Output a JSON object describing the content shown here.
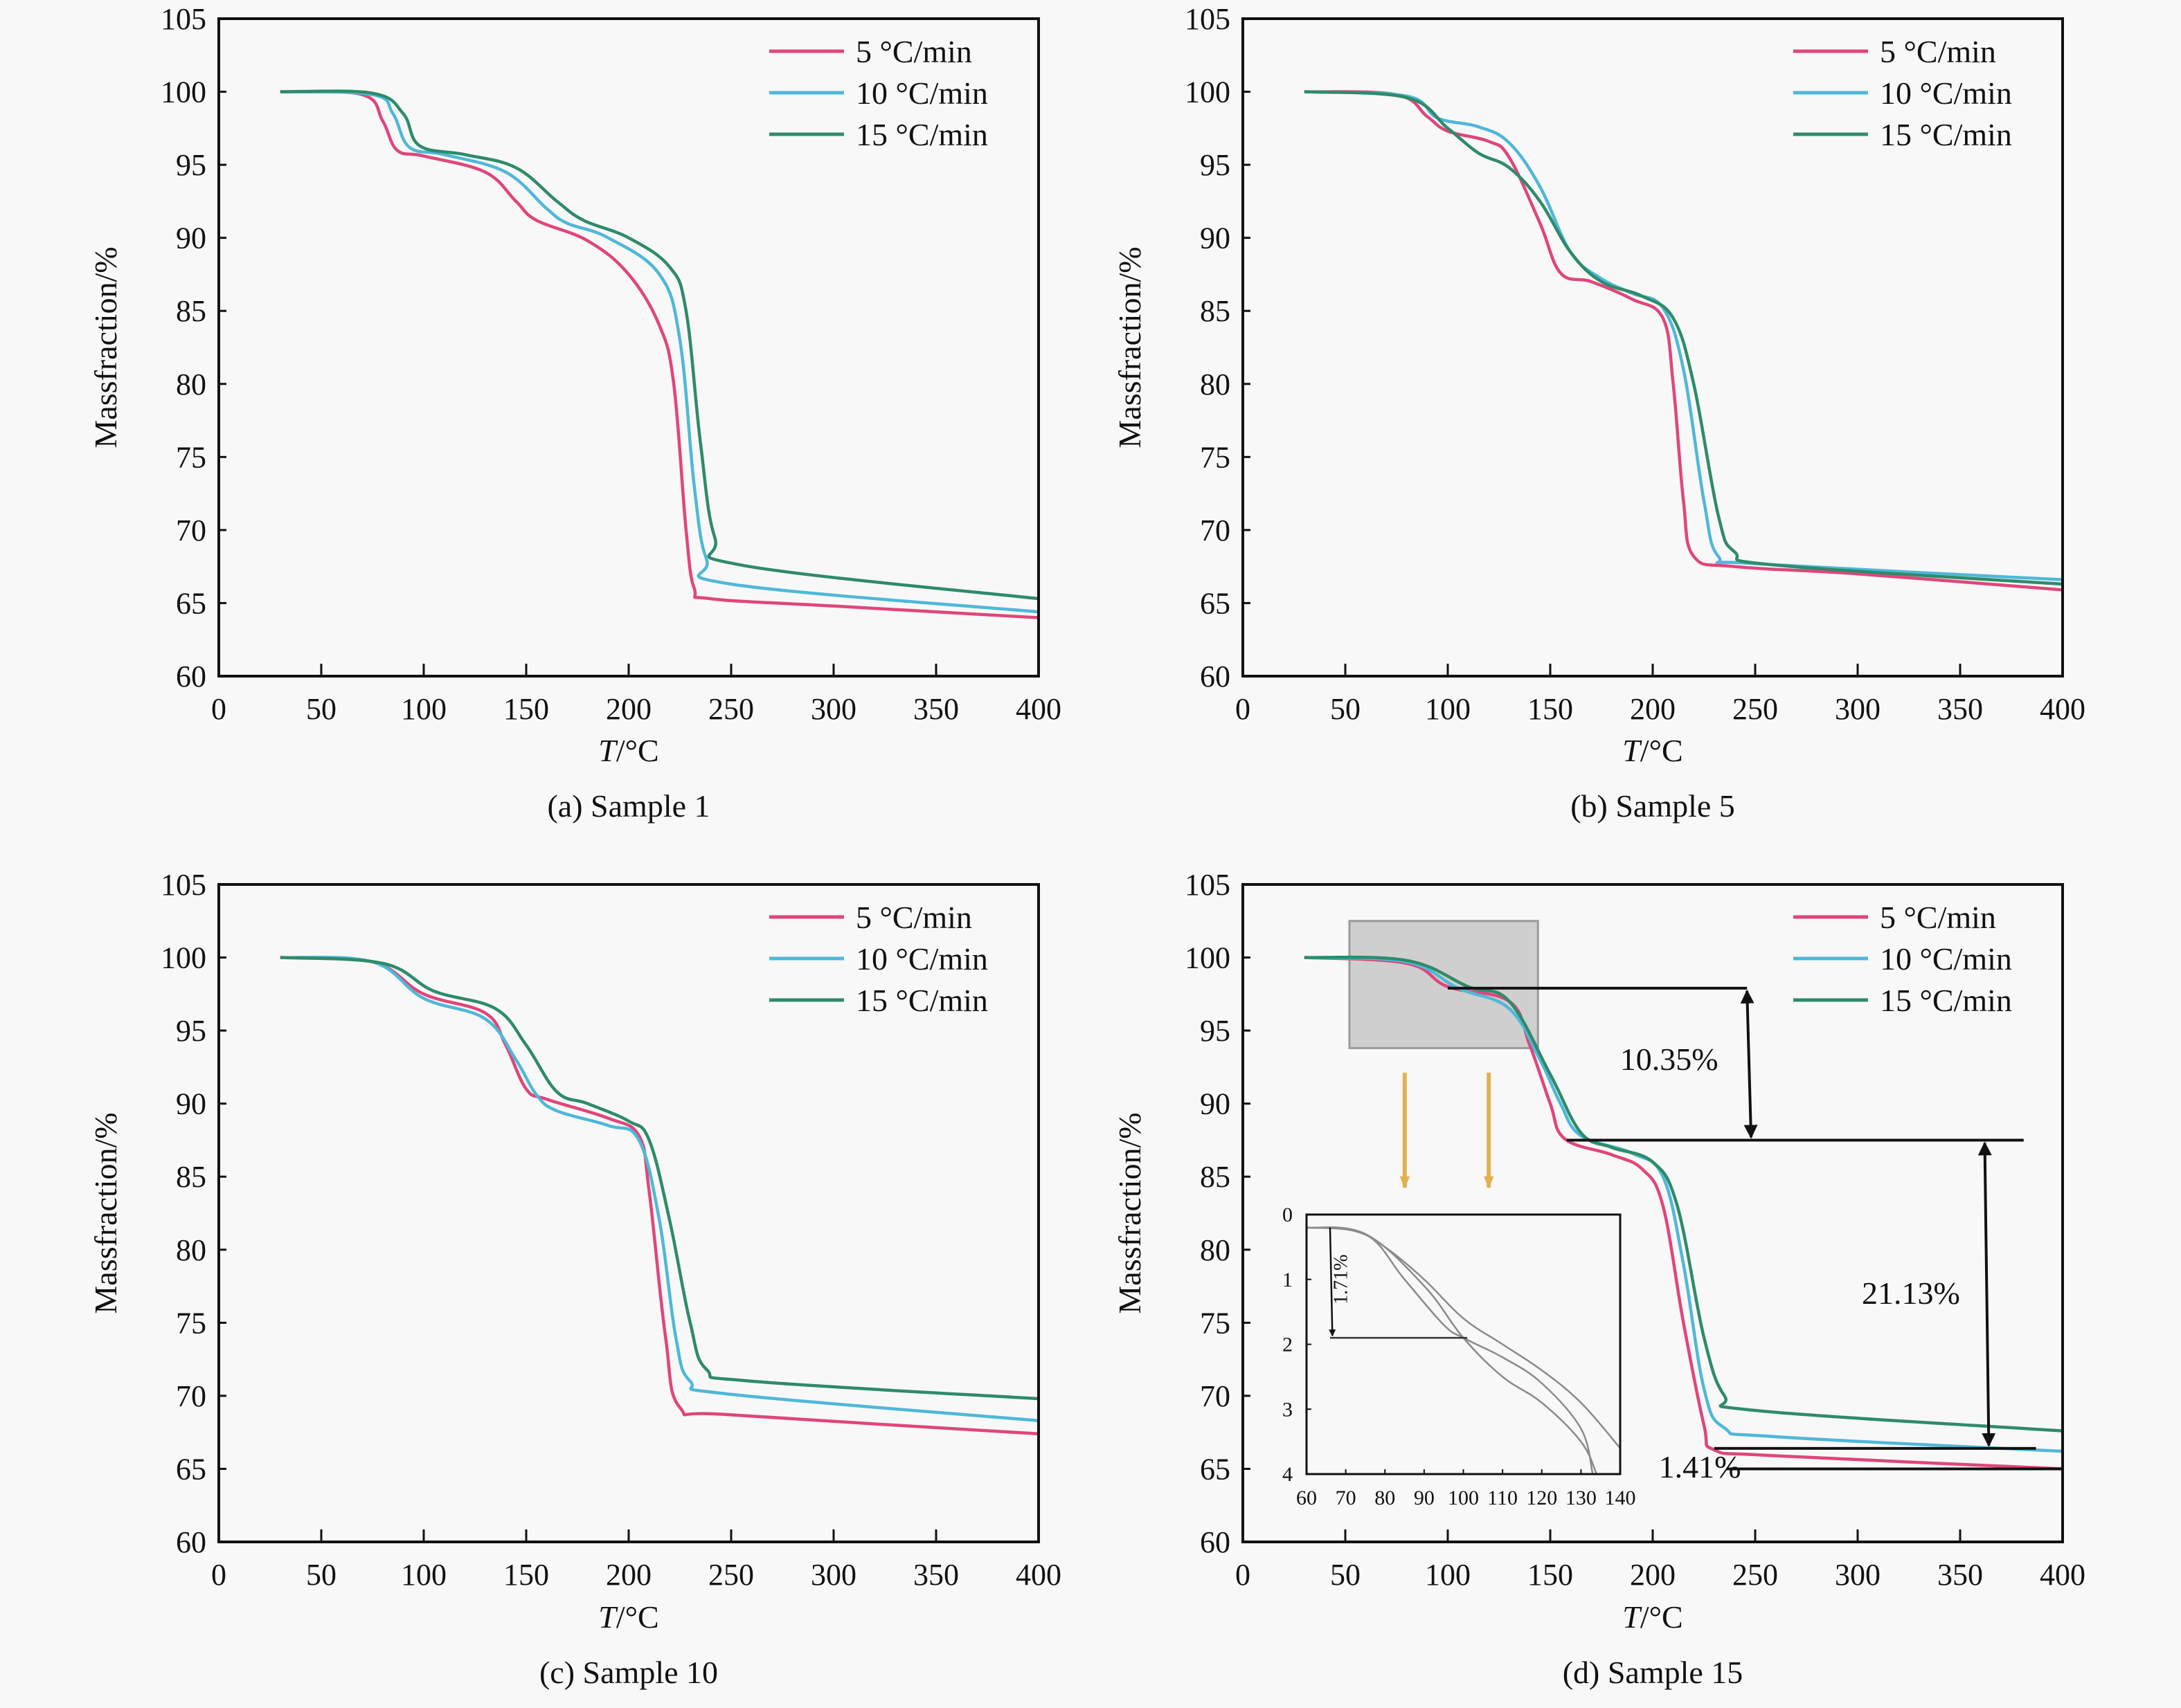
{
  "figure": {
    "ylabel": "Massfraction/%",
    "xlabel_italic": "T",
    "xlabel_unit": "/°C"
  },
  "colors": {
    "5 °C/min": "#e0457b",
    "10 °C/min": "#4fb8d8",
    "15 °C/min": "#2e8b6a",
    "axis": "#111111",
    "highlight_box": "#cfcfcf",
    "down_arrows": "#e0b24f",
    "inset_curves": "#8a8a8a"
  },
  "chart_data": [
    {
      "type": "line",
      "caption": "(a) Sample 1",
      "xlabel": "T/°C",
      "ylabel": "Massfraction/%",
      "xlim": [
        0,
        400
      ],
      "ylim": [
        60,
        105
      ],
      "xticks": [
        0,
        50,
        100,
        150,
        200,
        250,
        300,
        350,
        400
      ],
      "yticks": [
        60,
        65,
        70,
        75,
        80,
        85,
        90,
        95,
        100,
        105
      ],
      "legend": "top-right",
      "series": [
        {
          "name": "5 °C/min",
          "x": [
            30,
            70,
            80,
            87,
            100,
            130,
            145,
            155,
            180,
            200,
            215,
            222,
            228,
            232,
            240,
            300,
            400
          ],
          "y": [
            100,
            99.8,
            98,
            96,
            95.6,
            94.5,
            92.5,
            91.2,
            89.8,
            87.5,
            84,
            80,
            70,
            66,
            65.3,
            64.8,
            64.0
          ]
        },
        {
          "name": "10 °C/min",
          "x": [
            30,
            75,
            85,
            93,
            110,
            140,
            160,
            170,
            190,
            215,
            225,
            232,
            238,
            250,
            400
          ],
          "y": [
            100,
            99.8,
            98.5,
            96.2,
            95.7,
            94.5,
            92,
            91,
            90,
            87.5,
            83,
            73,
            68,
            66.3,
            64.4
          ]
        },
        {
          "name": "15 °C/min",
          "x": [
            30,
            75,
            90,
            98,
            120,
            145,
            165,
            178,
            200,
            220,
            228,
            235,
            242,
            255,
            400
          ],
          "y": [
            100,
            99.9,
            98.5,
            96.3,
            95.7,
            94.8,
            92.5,
            91.2,
            90,
            88,
            85,
            76,
            69.5,
            67.6,
            65.3
          ]
        }
      ]
    },
    {
      "type": "line",
      "caption": "(b) Sample 5",
      "xlabel": "T/°C",
      "ylabel": "Massfraction/%",
      "xlim": [
        0,
        400
      ],
      "ylim": [
        60,
        105
      ],
      "xticks": [
        0,
        50,
        100,
        150,
        200,
        250,
        300,
        350,
        400
      ],
      "yticks": [
        60,
        65,
        70,
        75,
        80,
        85,
        90,
        95,
        100,
        105
      ],
      "legend": "top-right",
      "series": [
        {
          "name": "5 °C/min",
          "x": [
            30,
            75,
            90,
            100,
            120,
            130,
            145,
            155,
            170,
            190,
            205,
            210,
            215,
            220,
            240,
            300,
            400
          ],
          "y": [
            100,
            99.8,
            98.3,
            97.3,
            96.6,
            95.5,
            91,
            87.6,
            87,
            85.8,
            84.5,
            80,
            72,
            68.2,
            67.5,
            67,
            65.9
          ]
        },
        {
          "name": "10 °C/min",
          "x": [
            30,
            80,
            95,
            115,
            130,
            145,
            160,
            175,
            190,
            205,
            215,
            225,
            232,
            250,
            400
          ],
          "y": [
            100,
            99.7,
            98.2,
            97.6,
            96.5,
            93.5,
            89,
            87.2,
            86.2,
            85.2,
            81,
            72,
            68.2,
            67.7,
            66.6
          ]
        },
        {
          "name": "15 °C/min",
          "x": [
            30,
            80,
            100,
            115,
            130,
            145,
            160,
            175,
            195,
            210,
            220,
            232,
            240,
            260,
            400
          ],
          "y": [
            100,
            99.6,
            97.5,
            95.8,
            94.8,
            92.5,
            89,
            87,
            86,
            84.5,
            80,
            71,
            68.5,
            67.6,
            66.3
          ]
        }
      ]
    },
    {
      "type": "line",
      "caption": "(c) Sample 10",
      "xlabel": "T/°C",
      "ylabel": "Massfraction/%",
      "xlim": [
        0,
        400
      ],
      "ylim": [
        60,
        105
      ],
      "xticks": [
        0,
        50,
        100,
        150,
        200,
        250,
        300,
        350,
        400
      ],
      "yticks": [
        60,
        65,
        70,
        75,
        80,
        85,
        90,
        95,
        100,
        105
      ],
      "legend": "top-right",
      "series": [
        {
          "name": "5 °C/min",
          "x": [
            30,
            75,
            100,
            130,
            140,
            150,
            160,
            190,
            205,
            210,
            218,
            225,
            250,
            400
          ],
          "y": [
            100,
            99.7,
            97.5,
            96.2,
            94,
            91,
            90.3,
            89,
            87.8,
            84,
            74,
            69.2,
            68.7,
            67.4
          ]
        },
        {
          "name": "10 °C/min",
          "x": [
            30,
            75,
            100,
            130,
            145,
            155,
            165,
            190,
            205,
            215,
            223,
            230,
            250,
            400
          ],
          "y": [
            100,
            99.7,
            97.2,
            95.8,
            93,
            90.6,
            89.5,
            88.5,
            87.5,
            82,
            74,
            71,
            70.1,
            68.3
          ]
        },
        {
          "name": "15 °C/min",
          "x": [
            30,
            80,
            105,
            135,
            150,
            165,
            180,
            200,
            210,
            220,
            230,
            238,
            260,
            400
          ],
          "y": [
            100,
            99.6,
            97.7,
            96.5,
            94,
            90.8,
            90,
            88.8,
            87.5,
            82,
            75,
            71.8,
            71,
            69.8
          ]
        }
      ]
    },
    {
      "type": "line",
      "caption": "(d) Sample 15",
      "xlabel": "T/°C",
      "ylabel": "Massfraction/%",
      "xlim": [
        0,
        400
      ],
      "ylim": [
        60,
        105
      ],
      "xticks": [
        0,
        50,
        100,
        150,
        200,
        250,
        300,
        350,
        400
      ],
      "yticks": [
        60,
        65,
        70,
        75,
        80,
        85,
        90,
        95,
        100,
        105
      ],
      "legend": "top-right",
      "series": [
        {
          "name": "5 °C/min",
          "x": [
            30,
            80,
            100,
            130,
            140,
            150,
            157,
            180,
            195,
            205,
            215,
            225,
            230,
            260,
            400
          ],
          "y": [
            100,
            99.6,
            98,
            97,
            94,
            90,
            87.6,
            86.5,
            85.5,
            83,
            75,
            68,
            66.3,
            65.9,
            65
          ]
        },
        {
          "name": "10 °C/min",
          "x": [
            30,
            80,
            105,
            130,
            145,
            155,
            165,
            190,
            205,
            215,
            225,
            235,
            260,
            400
          ],
          "y": [
            100,
            99.7,
            97.9,
            96.5,
            93,
            90,
            87.8,
            86.6,
            85,
            79,
            70.5,
            67.8,
            67.2,
            66.2
          ]
        },
        {
          "name": "15 °C/min",
          "x": [
            30,
            80,
            110,
            130,
            150,
            165,
            180,
            200,
            212,
            225,
            235,
            250,
            400
          ],
          "y": [
            100,
            99.8,
            98,
            97,
            92,
            88,
            87,
            86,
            83,
            74,
            70,
            69,
            67.6
          ]
        }
      ],
      "annotations": [
        {
          "label": "10.35%",
          "from_y": 97.9,
          "to_y": 87.5,
          "type": "double-arrow"
        },
        {
          "label": "21.13%",
          "from_y": 87.5,
          "to_y": 66.4,
          "type": "double-arrow"
        },
        {
          "label": "1.41%",
          "from_y": 66.4,
          "to_y": 65.0,
          "type": "level-lines"
        }
      ],
      "highlight_region": {
        "x": [
          52,
          144
        ],
        "y": [
          93.8,
          102.5
        ]
      },
      "inset": {
        "type": "line",
        "xlim": [
          60,
          140
        ],
        "ylim": [
          0,
          4
        ],
        "y_inverted": true,
        "xticks": [
          60,
          70,
          80,
          90,
          100,
          110,
          120,
          130,
          140
        ],
        "yticks": [
          0,
          1,
          2,
          3,
          4
        ],
        "annotation": {
          "label": "1.71%",
          "from_y": 0.2,
          "to_y": 1.9
        },
        "series": [
          {
            "name": "15 °C/min",
            "x": [
              60,
              72,
              80,
              90,
              100,
              110,
              120,
              130,
              140
            ],
            "y": [
              0.2,
              0.25,
              0.5,
              1.0,
              1.6,
              2.0,
              2.4,
              2.9,
              3.6
            ]
          },
          {
            "name": "10 °C/min",
            "x": [
              60,
              75,
              85,
              95,
              100,
              110,
              120,
              130,
              133
            ],
            "y": [
              0.2,
              0.3,
              1.0,
              1.7,
              1.9,
              2.2,
              2.6,
              3.3,
              4.0
            ]
          },
          {
            "name": "5 °C/min",
            "x": [
              60,
              75,
              90,
              100,
              110,
              120,
              130,
              134
            ],
            "y": [
              0.2,
              0.3,
              1.1,
              1.9,
              2.5,
              2.9,
              3.5,
              4.0
            ]
          }
        ]
      }
    }
  ]
}
